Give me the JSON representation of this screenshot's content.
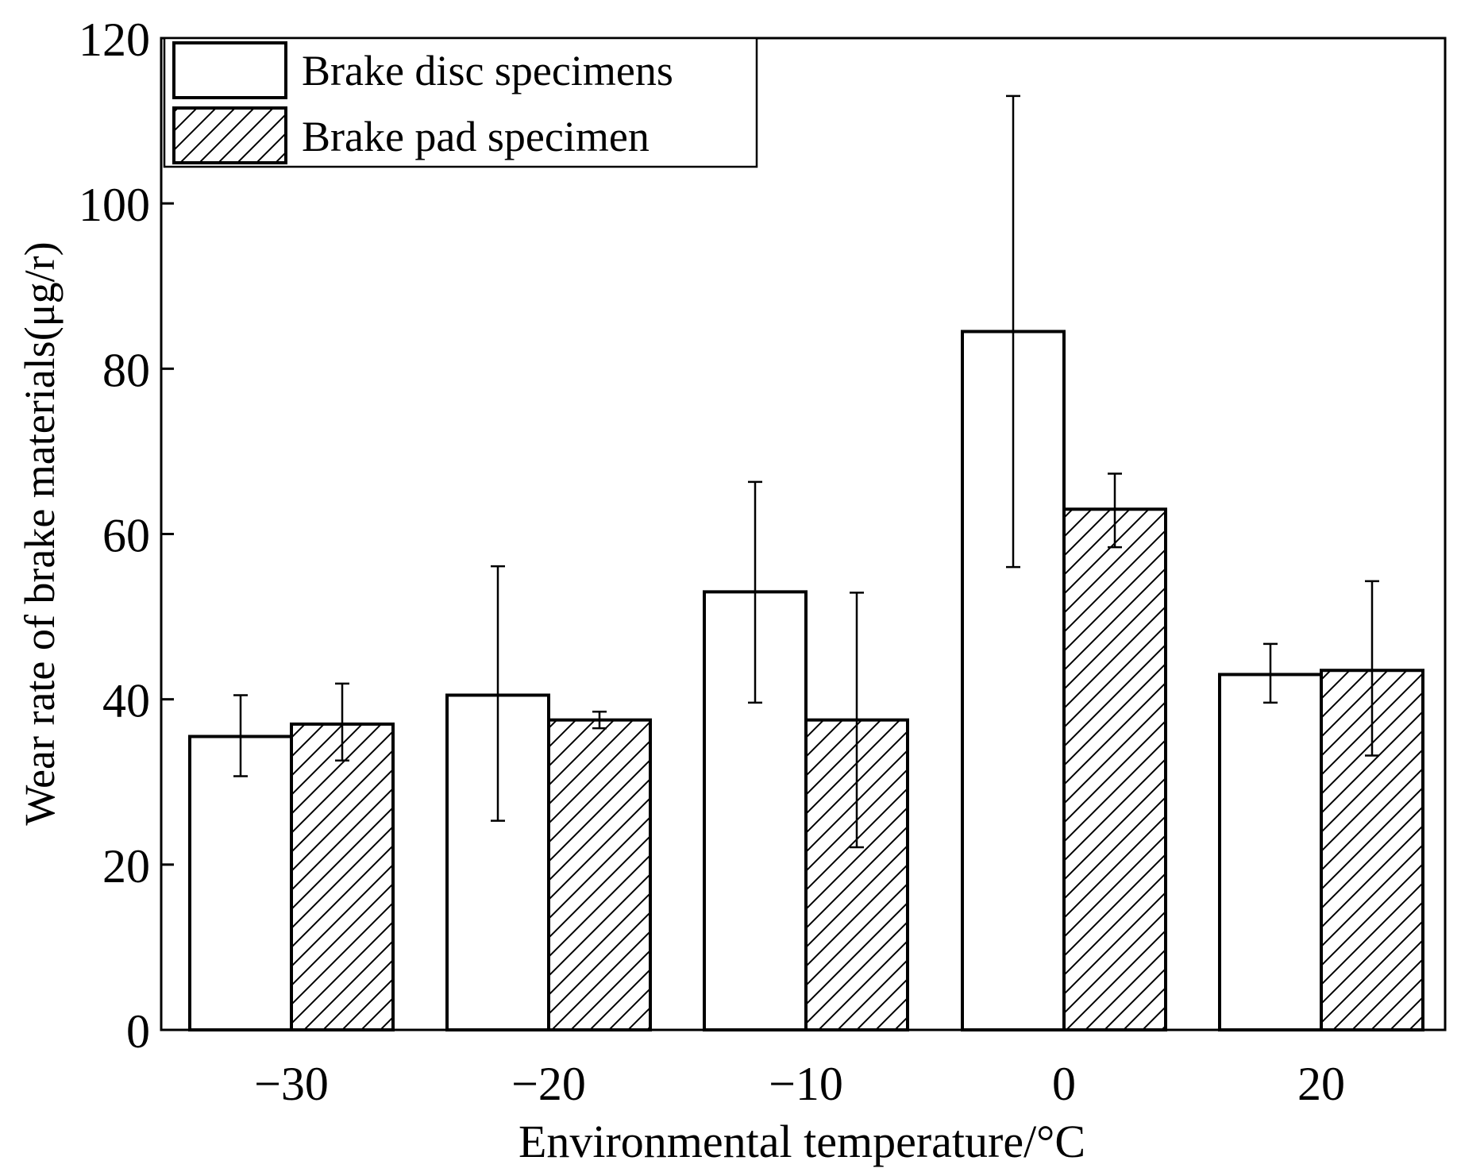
{
  "chart_data": {
    "type": "bar",
    "xlabel": "Environmental temperature/°C",
    "ylabel": "Wear rate of brake materials(μg/r)",
    "ylim": [
      0,
      120
    ],
    "yticks": [
      0,
      20,
      40,
      60,
      80,
      100,
      120
    ],
    "categories": [
      "−30",
      "−20",
      "−10",
      "0",
      "20"
    ],
    "legend_position": "top-left",
    "series": [
      {
        "name": "Brake disc specimens",
        "pattern": "none",
        "values": [
          35.5,
          40.5,
          53,
          84.5,
          43
        ],
        "err_low": [
          30.7,
          25.3,
          39.6,
          56,
          39.6
        ],
        "err_high": [
          40.5,
          56.1,
          66.3,
          113,
          46.7
        ]
      },
      {
        "name": "Brake pad specimen",
        "pattern": "hatch",
        "values": [
          37,
          37.5,
          37.5,
          63,
          43.5
        ],
        "err_low": [
          32.6,
          36.5,
          22.1,
          58.4,
          33.2
        ],
        "err_high": [
          41.9,
          38.5,
          52.9,
          67.3,
          54.3
        ]
      }
    ]
  }
}
